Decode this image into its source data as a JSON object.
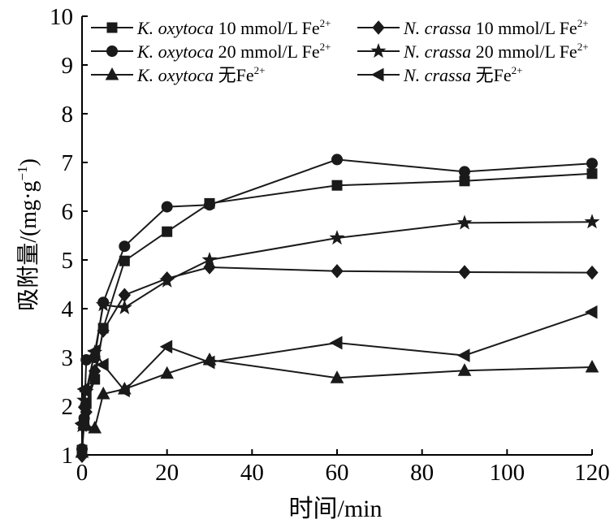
{
  "chart_data": {
    "type": "line",
    "xlabel": "时间/min",
    "ylabel": "吸附量/(mg·g",
    "ylabel_sup": "−1",
    "ylabel_close": ")",
    "xlim": [
      0,
      120
    ],
    "ylim": [
      1,
      10
    ],
    "xticks": [
      0,
      20,
      40,
      60,
      80,
      100,
      120
    ],
    "yticks": [
      1,
      2,
      3,
      4,
      5,
      6,
      7,
      8,
      9,
      10
    ],
    "grid": false,
    "legend_position": "top",
    "series": [
      {
        "name": "K. oxytoca 10 mmol/L Fe2+",
        "label_italic": "K. oxytoca",
        "label_rest": " 10 mmol/L Fe",
        "label_sup": "2+",
        "marker": "square",
        "x": [
          0,
          0.5,
          1,
          3,
          5,
          10,
          20,
          30,
          60,
          90,
          120
        ],
        "y": [
          1.1,
          1.7,
          2.05,
          2.55,
          3.6,
          4.98,
          5.58,
          6.16,
          6.53,
          6.62,
          6.77
        ]
      },
      {
        "name": "K. oxytoca 20 mmol/L Fe2+",
        "label_italic": "K. oxytoca",
        "label_rest": " 20 mmol/L Fe",
        "label_sup": "2+",
        "marker": "circle",
        "x": [
          0,
          0.5,
          1,
          3,
          5,
          10,
          20,
          30,
          60,
          90,
          120
        ],
        "y": [
          1.12,
          1.75,
          2.95,
          3.0,
          4.13,
          5.28,
          6.09,
          6.13,
          7.06,
          6.81,
          6.98
        ]
      },
      {
        "name": "K. oxytoca 无Fe2+",
        "label_italic": "K. oxytoca",
        "label_rest": " 无Fe",
        "label_sup": "2+",
        "marker": "triangle-up",
        "x": [
          0,
          0.5,
          1,
          3,
          5,
          10,
          20,
          30,
          60,
          90,
          120
        ],
        "y": [
          1.05,
          1.65,
          1.6,
          1.55,
          2.25,
          2.35,
          2.67,
          2.95,
          2.58,
          2.73,
          2.8
        ]
      },
      {
        "name": "N. crassa 10 mmol/L Fe2+",
        "label_italic": "N. crassa",
        "label_rest": " 10 mmol/L Fe",
        "label_sup": "2+",
        "marker": "diamond",
        "x": [
          0,
          0.5,
          1,
          3,
          5,
          10,
          20,
          30,
          60,
          90,
          120
        ],
        "y": [
          0.98,
          1.98,
          1.88,
          2.72,
          3.55,
          4.28,
          4.62,
          4.85,
          4.77,
          4.75,
          4.74
        ]
      },
      {
        "name": "N. crassa 20 mmol/L Fe2+",
        "label_italic": "N. crassa",
        "label_rest": " 20 mmol/L Fe",
        "label_sup": "2+",
        "marker": "star",
        "x": [
          0,
          0.5,
          1,
          3,
          5,
          10,
          20,
          30,
          60,
          90,
          120
        ],
        "y": [
          1.6,
          2.12,
          2.3,
          3.1,
          4.08,
          4.02,
          4.57,
          5.0,
          5.45,
          5.76,
          5.78
        ]
      },
      {
        "name": "N. crassa 无Fe2+",
        "label_italic": "N. crassa",
        "label_rest": " 无Fe",
        "label_sup": "2+",
        "marker": "triangle-left",
        "x": [
          0,
          0.5,
          1,
          3,
          5,
          10,
          20,
          30,
          60,
          90,
          120
        ],
        "y": [
          1.65,
          2.35,
          2.3,
          3.13,
          2.85,
          2.32,
          3.22,
          2.9,
          3.3,
          3.04,
          3.93
        ]
      }
    ]
  }
}
